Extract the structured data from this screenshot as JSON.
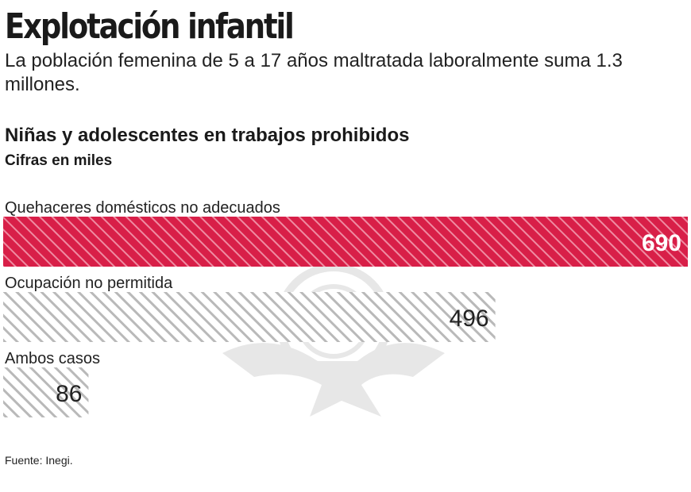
{
  "header": {
    "title": "Explotación infantil",
    "subtitle": "La población femenina de 5 a 17 años maltratada laboralmente suma 1.3 millones."
  },
  "chart_data": {
    "type": "bar",
    "orientation": "horizontal",
    "title": "Niñas y adolescentes en trabajos prohibidos",
    "subtitle": "Cifras en miles",
    "categories": [
      "Quehaceres domésticos no adecuados",
      "Ocupación no permitida",
      "Ambos casos"
    ],
    "values": [
      690,
      496,
      86
    ],
    "xlim": [
      0,
      690
    ],
    "grid": false,
    "colors": {
      "highlight": "#d81f48",
      "highlight_stripe": "#ef8ca2",
      "muted_stripe": "#b9b9b9"
    }
  },
  "footer": {
    "source": "Fuente: Inegi."
  },
  "icons": {
    "watermark": "eagle-seal-icon"
  }
}
